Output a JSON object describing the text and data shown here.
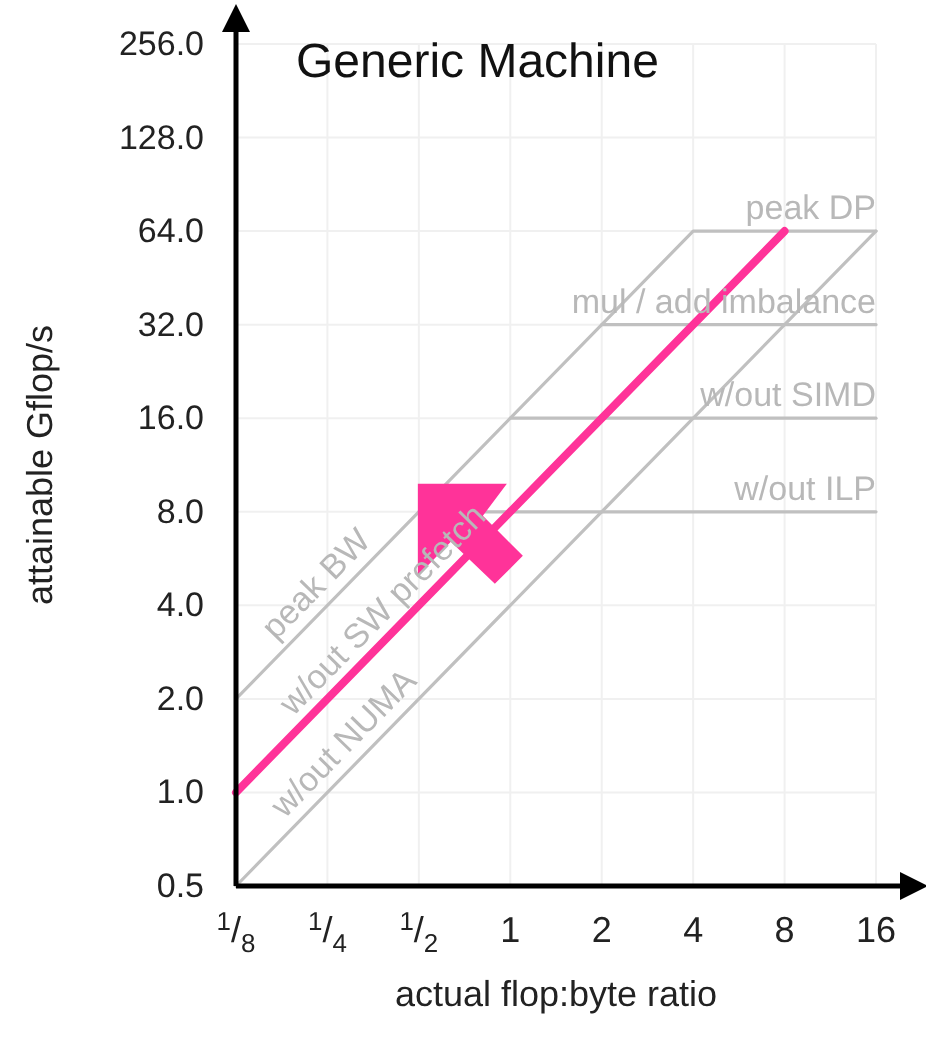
{
  "chart_data": {
    "type": "line",
    "title": "Generic Machine",
    "xlabel": "actual flop:byte ratio",
    "ylabel": "attainable Gflop/s",
    "log": "xy",
    "grid": true,
    "marker": "none",
    "line_style": "solid",
    "xlim": [
      0.125,
      16
    ],
    "ylim": [
      0.5,
      256
    ],
    "xticks": [
      {
        "value": 0.125,
        "label": "$^{1}$/$_{8}$"
      },
      {
        "value": 0.25,
        "label": "$^{1}$/$_{4}$"
      },
      {
        "value": 0.5,
        "label": "$^{1}$/$_{2}$"
      },
      1,
      2,
      4,
      8,
      16
    ],
    "yticks": [
      {
        "value": 0.5,
        "label": "0.5"
      },
      {
        "value": 1,
        "label": "1.0"
      },
      {
        "value": 2,
        "label": "2.0"
      },
      {
        "value": 4,
        "label": "4.0"
      },
      {
        "value": 8,
        "label": "8.0"
      },
      {
        "value": 16,
        "label": "16.0"
      },
      {
        "value": 32,
        "label": "32.0"
      },
      {
        "value": 64,
        "label": "64.0"
      },
      {
        "value": 128,
        "label": "128.0"
      },
      {
        "value": 256,
        "label": "256.0"
      }
    ],
    "series": [
      {
        "color": "#c0c0c0",
        "x": [
          0.125,
          4,
          16
        ],
        "values": [
          2,
          64,
          64
        ]
      },
      {
        "color": "#c0c0c0",
        "x": [
          0.125,
          16
        ],
        "values": [
          0.5,
          64
        ]
      },
      {
        "color": "#c0c0c0",
        "x": [
          2,
          16
        ],
        "values": [
          32,
          32
        ]
      },
      {
        "color": "#c0c0c0",
        "x": [
          1,
          16
        ],
        "values": [
          16,
          16
        ]
      },
      {
        "color": "#c0c0c0",
        "x": [
          0.5,
          16
        ],
        "values": [
          8,
          8
        ]
      },
      {
        "color": "#ff3399",
        "x": [
          0.125,
          8
        ],
        "values": [
          1,
          64
        ]
      }
    ],
    "annotations": [
      {
        "text": "peak DP",
        "x": 16,
        "y": 64
      },
      {
        "text": "mul / add imbalance",
        "x": 16,
        "y": 32
      },
      {
        "text": "w/out SIMD",
        "x": 16,
        "y": 16
      },
      {
        "text": "w/out ILP",
        "x": 16,
        "y": 8
      },
      {
        "text": "peak BW",
        "x": 0.26,
        "y": 4.16
      },
      {
        "text": "w/out SW prefetch",
        "x": 0.43,
        "y": 3.44
      },
      {
        "text": "w/out NUMA",
        "x": 0.32,
        "y": 1.28
      }
    ]
  }
}
